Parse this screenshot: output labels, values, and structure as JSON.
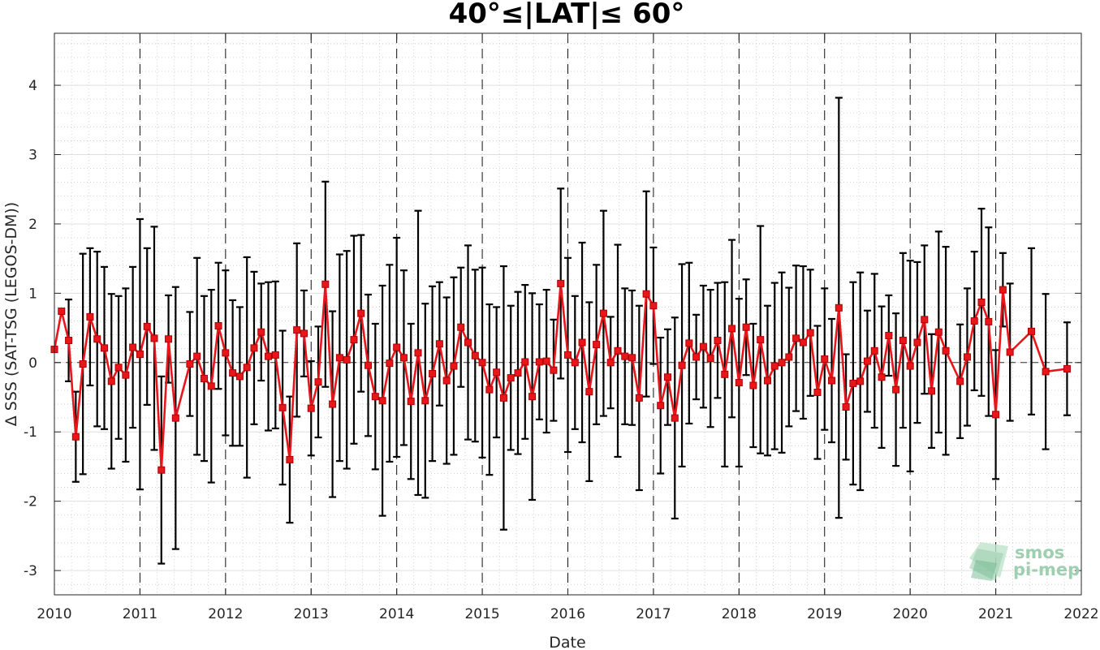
{
  "chart_data": {
    "type": "line",
    "title": "40°≤|LAT|≤ 60°",
    "xlabel": "Date",
    "ylabel": "Δ SSS (SAT-TSG (LEGOS-DM))",
    "xlim": [
      "2010-01-01",
      "2022-01-01"
    ],
    "ylim": [
      -3.35,
      4.75
    ],
    "x_ticks": [
      "2010",
      "2011",
      "2012",
      "2013",
      "2014",
      "2015",
      "2016",
      "2017",
      "2018",
      "2019",
      "2020",
      "2021",
      "2022"
    ],
    "y_ticks": [
      -3,
      -2,
      -1,
      0,
      1,
      2,
      3,
      4
    ],
    "grid": "minor dotted",
    "year_dividers": "dashed vertical lines at each year",
    "zero_line": "dashed horizontal at 0",
    "colors": {
      "series": "#e8161b",
      "errorbars": "#000000",
      "grid": "#c8c8c8"
    },
    "series": [
      {
        "marker": "square",
        "error": "std",
        "x": [
          "2010-01",
          "2010-02",
          "2010-03",
          "2010-04",
          "2010-05",
          "2010-06",
          "2010-07",
          "2010-08",
          "2010-09",
          "2010-10",
          "2010-11",
          "2010-12",
          "2011-01",
          "2011-02",
          "2011-03",
          "2011-04",
          "2011-05",
          "2011-06",
          "2011-08",
          "2011-09",
          "2011-10",
          "2011-11",
          "2011-12",
          "2012-01",
          "2012-02",
          "2012-03",
          "2012-04",
          "2012-05",
          "2012-06",
          "2012-07",
          "2012-08",
          "2012-09",
          "2012-10",
          "2012-11",
          "2012-12",
          "2013-01",
          "2013-02",
          "2013-03",
          "2013-04",
          "2013-05",
          "2013-06",
          "2013-07",
          "2013-08",
          "2013-09",
          "2013-10",
          "2013-11",
          "2013-12",
          "2014-01",
          "2014-02",
          "2014-03",
          "2014-04",
          "2014-05",
          "2014-06",
          "2014-07",
          "2014-08",
          "2014-09",
          "2014-10",
          "2014-11",
          "2014-12",
          "2015-01",
          "2015-02",
          "2015-03",
          "2015-04",
          "2015-05",
          "2015-06",
          "2015-07",
          "2015-08",
          "2015-09",
          "2015-10",
          "2015-11",
          "2015-12",
          "2016-01",
          "2016-02",
          "2016-03",
          "2016-04",
          "2016-05",
          "2016-06",
          "2016-07",
          "2016-08",
          "2016-09",
          "2016-10",
          "2016-11",
          "2016-12",
          "2017-01",
          "2017-02",
          "2017-03",
          "2017-04",
          "2017-05",
          "2017-06",
          "2017-07",
          "2017-08",
          "2017-09",
          "2017-10",
          "2017-11",
          "2017-12",
          "2018-01",
          "2018-02",
          "2018-03",
          "2018-04",
          "2018-05",
          "2018-06",
          "2018-07",
          "2018-08",
          "2018-09",
          "2018-10",
          "2018-11",
          "2018-12",
          "2019-01",
          "2019-02",
          "2019-03",
          "2019-04",
          "2019-05",
          "2019-06",
          "2019-07",
          "2019-08",
          "2019-09",
          "2019-10",
          "2019-11",
          "2019-12",
          "2020-01",
          "2020-02",
          "2020-03",
          "2020-04",
          "2020-05",
          "2020-06",
          "2020-08",
          "2020-09",
          "2020-10",
          "2020-11",
          "2020-12",
          "2021-01",
          "2021-02",
          "2021-03",
          "2021-06",
          "2021-08",
          "2021-11"
        ],
        "y": [
          0.19,
          0.74,
          0.32,
          -1.07,
          -0.02,
          0.66,
          0.34,
          0.21,
          -0.27,
          -0.07,
          -0.18,
          0.22,
          0.12,
          0.52,
          0.35,
          -1.55,
          0.34,
          -0.8,
          -0.02,
          0.09,
          -0.23,
          -0.34,
          0.53,
          0.14,
          -0.15,
          -0.2,
          -0.07,
          0.21,
          0.44,
          0.09,
          0.11,
          -0.65,
          -1.4,
          0.47,
          0.42,
          -0.66,
          -0.28,
          1.13,
          -0.6,
          0.07,
          0.04,
          0.33,
          0.71,
          -0.04,
          -0.49,
          -0.55,
          -0.01,
          0.22,
          0.07,
          -0.56,
          0.14,
          -0.55,
          -0.16,
          0.27,
          -0.26,
          -0.05,
          0.51,
          0.29,
          0.1,
          0.0,
          -0.39,
          -0.14,
          -0.51,
          -0.22,
          -0.15,
          0.01,
          -0.49,
          0.01,
          0.02,
          -0.11,
          1.14,
          0.11,
          0.0,
          0.29,
          -0.42,
          0.26,
          0.71,
          0.0,
          0.17,
          0.09,
          0.07,
          -0.51,
          0.99,
          0.82,
          -0.62,
          -0.21,
          -0.8,
          -0.04,
          0.28,
          0.08,
          0.23,
          0.06,
          0.32,
          -0.17,
          0.49,
          -0.29,
          0.51,
          -0.33,
          0.33,
          -0.26,
          -0.05,
          0.0,
          0.08,
          0.35,
          0.29,
          0.43,
          -0.43,
          0.05,
          -0.26,
          0.79,
          -0.64,
          -0.3,
          -0.27,
          0.02,
          0.17,
          -0.21,
          0.39,
          -0.39,
          0.32,
          -0.05,
          0.29,
          0.62,
          -0.41,
          0.44,
          0.17,
          -0.27,
          0.08,
          0.6,
          0.87,
          0.59,
          -0.75,
          1.05,
          0.15,
          0.45,
          -0.13,
          -0.09
        ],
        "err": [
          0.0,
          0.0,
          0.59,
          0.65,
          1.59,
          0.99,
          1.26,
          1.17,
          1.26,
          1.03,
          1.25,
          1.16,
          1.95,
          1.13,
          1.61,
          1.35,
          0.63,
          1.89,
          0.75,
          1.42,
          1.19,
          1.39,
          0.91,
          1.19,
          1.05,
          1.0,
          1.59,
          1.1,
          0.7,
          1.07,
          1.06,
          1.11,
          0.91,
          1.25,
          0.62,
          0.68,
          0.8,
          1.48,
          1.34,
          1.49,
          1.57,
          1.5,
          1.13,
          1.02,
          1.05,
          1.66,
          1.42,
          1.58,
          1.26,
          1.12,
          2.05,
          1.4,
          1.26,
          0.89,
          1.2,
          1.28,
          0.86,
          1.4,
          1.24,
          1.37,
          1.23,
          0.94,
          1.9,
          1.04,
          1.17,
          1.11,
          1.49,
          0.83,
          1.03,
          0.73,
          1.37,
          1.4,
          0.96,
          1.44,
          1.29,
          1.15,
          1.48,
          0.66,
          1.53,
          0.98,
          0.97,
          1.33,
          1.48,
          0.84,
          0.98,
          0.69,
          1.45,
          1.46,
          1.16,
          0.61,
          0.88,
          0.99,
          0.83,
          1.33,
          1.28,
          1.21,
          0.69,
          0.89,
          1.64,
          1.08,
          1.2,
          1.3,
          1.0,
          1.05,
          1.1,
          0.91,
          0.96,
          1.02,
          0.89,
          3.03,
          0.76,
          1.46,
          1.57,
          0.73,
          1.11,
          1.02,
          0.58,
          1.1,
          1.26,
          1.52,
          1.16,
          1.07,
          0.82,
          1.45,
          1.5,
          0.82,
          0.99,
          1.0,
          1.35,
          1.36,
          0.93,
          0.53,
          0.99,
          1.2,
          1.12,
          0.67
        ]
      }
    ]
  },
  "logo": {
    "line1": "smos",
    "line2": "pi-mep"
  }
}
